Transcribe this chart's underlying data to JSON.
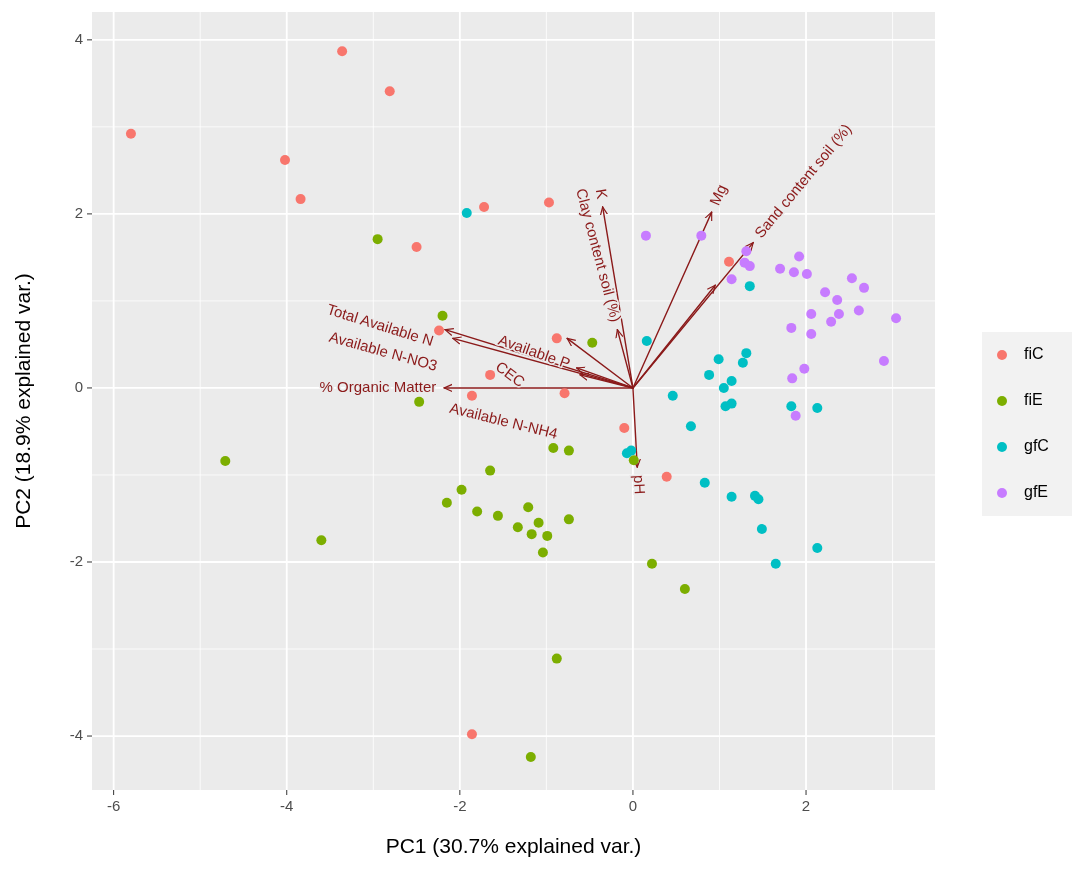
{
  "chart_data": {
    "type": "scatter",
    "xlabel": "PC1 (30.7% explained var.)",
    "ylabel": "PC2 (18.9% explained var.)",
    "xlim": [
      -6.25,
      3.49
    ],
    "ylim": [
      -4.62,
      4.32
    ],
    "xticks": [
      -6,
      -4,
      -2,
      0,
      2
    ],
    "yticks": [
      -4,
      -2,
      0,
      2,
      4
    ],
    "grid": true,
    "legend": "right",
    "marker": "circle",
    "series": [
      {
        "name": "fiC",
        "color": "#f8766d",
        "x": [
          -5.8,
          -3.36,
          -2.81,
          -4.02,
          -3.84,
          -1.72,
          -2.5,
          -2.24,
          -1.65,
          -1.86,
          -0.97,
          -0.88,
          -0.79,
          1.11,
          -0.1,
          0.39,
          -1.86
        ],
        "values": [
          2.92,
          3.87,
          3.41,
          2.62,
          2.17,
          2.08,
          1.62,
          0.66,
          0.15,
          -0.09,
          2.13,
          0.57,
          -0.06,
          1.45,
          -0.46,
          -1.02,
          -3.98
        ]
      },
      {
        "name": "fiE",
        "color": "#7cae00",
        "x": [
          -2.95,
          -2.2,
          -2.47,
          -0.47,
          -4.71,
          -3.6,
          -1.65,
          -1.98,
          -2.15,
          -1.8,
          -1.56,
          -0.92,
          -0.74,
          0.01,
          -1.21,
          -1.33,
          -1.09,
          -1.17,
          -0.99,
          -1.04,
          -0.74,
          0.22,
          0.6,
          -0.88,
          -1.18
        ],
        "values": [
          1.71,
          0.83,
          -0.16,
          0.52,
          -0.84,
          -1.75,
          -0.95,
          -1.17,
          -1.32,
          -1.42,
          -1.47,
          -0.69,
          -0.72,
          -0.83,
          -1.37,
          -1.6,
          -1.55,
          -1.68,
          -1.7,
          -1.89,
          -1.51,
          -2.02,
          -2.31,
          -3.11,
          -4.24
        ]
      },
      {
        "name": "gfC",
        "color": "#00bfc4",
        "x": [
          -1.92,
          0.16,
          1.35,
          1.31,
          1.27,
          0.99,
          0.88,
          1.14,
          1.05,
          0.46,
          1.14,
          1.07,
          1.83,
          2.13,
          0.67,
          -0.07,
          -0.02,
          0.83,
          1.14,
          1.41,
          1.45,
          1.49,
          2.13,
          1.65
        ],
        "values": [
          2.01,
          0.54,
          1.17,
          0.4,
          0.29,
          0.33,
          0.15,
          0.08,
          0.0,
          -0.09,
          -0.18,
          -0.21,
          -0.21,
          -0.23,
          -0.44,
          -0.75,
          -0.72,
          -1.09,
          -1.25,
          -1.24,
          -1.28,
          -1.62,
          -1.84,
          -2.02
        ]
      },
      {
        "name": "gfE",
        "color": "#c77cff",
        "x": [
          0.15,
          0.79,
          1.31,
          1.29,
          1.35,
          1.14,
          1.7,
          1.86,
          1.92,
          2.01,
          2.53,
          2.67,
          2.22,
          2.36,
          2.61,
          2.38,
          2.06,
          2.29,
          3.04,
          1.83,
          2.06,
          2.9,
          1.98,
          1.84,
          1.88
        ],
        "values": [
          1.75,
          1.75,
          1.57,
          1.44,
          1.4,
          1.25,
          1.37,
          1.33,
          1.51,
          1.31,
          1.26,
          1.15,
          1.1,
          1.01,
          0.89,
          0.85,
          0.85,
          0.76,
          0.8,
          0.69,
          0.62,
          0.31,
          0.22,
          0.11,
          -0.32
        ]
      },
      {
        "type": "line",
        "name": "% Organic Matter",
        "color": "#8b1a1a",
        "x": [
          0,
          -2.18
        ],
        "values": [
          0,
          0
        ],
        "marker": "none"
      },
      {
        "type": "line",
        "name": "Total Available N",
        "color": "#8b1a1a",
        "x": [
          0,
          -2.17
        ],
        "values": [
          0,
          0.67
        ],
        "marker": "none"
      },
      {
        "type": "line",
        "name": "Available N-NO3",
        "color": "#8b1a1a",
        "x": [
          0,
          -2.08
        ],
        "values": [
          0,
          0.57
        ],
        "marker": "none"
      },
      {
        "type": "line",
        "name": "Available P",
        "color": "#8b1a1a",
        "x": [
          0,
          -0.65
        ],
        "values": [
          0,
          0.23
        ],
        "marker": "none"
      },
      {
        "type": "line",
        "name": "Available N-NH4",
        "color": "#8b1a1a",
        "x": [
          0,
          -0.61
        ],
        "values": [
          0,
          0.15
        ],
        "marker": "none"
      },
      {
        "type": "line",
        "name": "CEC",
        "color": "#8b1a1a",
        "x": [
          0,
          -0.76
        ],
        "values": [
          0,
          0.57
        ],
        "marker": "none"
      },
      {
        "type": "line",
        "name": "Clay content soil (%)",
        "color": "#8b1a1a",
        "x": [
          0,
          -0.18
        ],
        "values": [
          0,
          0.67
        ],
        "marker": "none"
      },
      {
        "type": "line",
        "name": "K",
        "color": "#8b1a1a",
        "x": [
          0,
          -0.35
        ],
        "values": [
          0,
          2.08
        ],
        "marker": "none"
      },
      {
        "type": "line",
        "name": "Mg",
        "color": "#8b1a1a",
        "x": [
          0,
          0.91
        ],
        "values": [
          0,
          2.02
        ],
        "marker": "none"
      },
      {
        "type": "line",
        "name": "Sand content soil (%)",
        "color": "#8b1a1a",
        "x": [
          0,
          1.39
        ],
        "values": [
          0,
          1.67
        ],
        "marker": "none"
      },
      {
        "type": "line",
        "color": "#8b1a1a",
        "x": [
          0,
          0.95
        ],
        "values": [
          0,
          1.18
        ],
        "marker": "none"
      },
      {
        "type": "line",
        "name": "pH",
        "color": "#8b1a1a",
        "x": [
          0,
          0.05
        ],
        "values": [
          0,
          -0.91
        ],
        "marker": "none"
      }
    ]
  }
}
